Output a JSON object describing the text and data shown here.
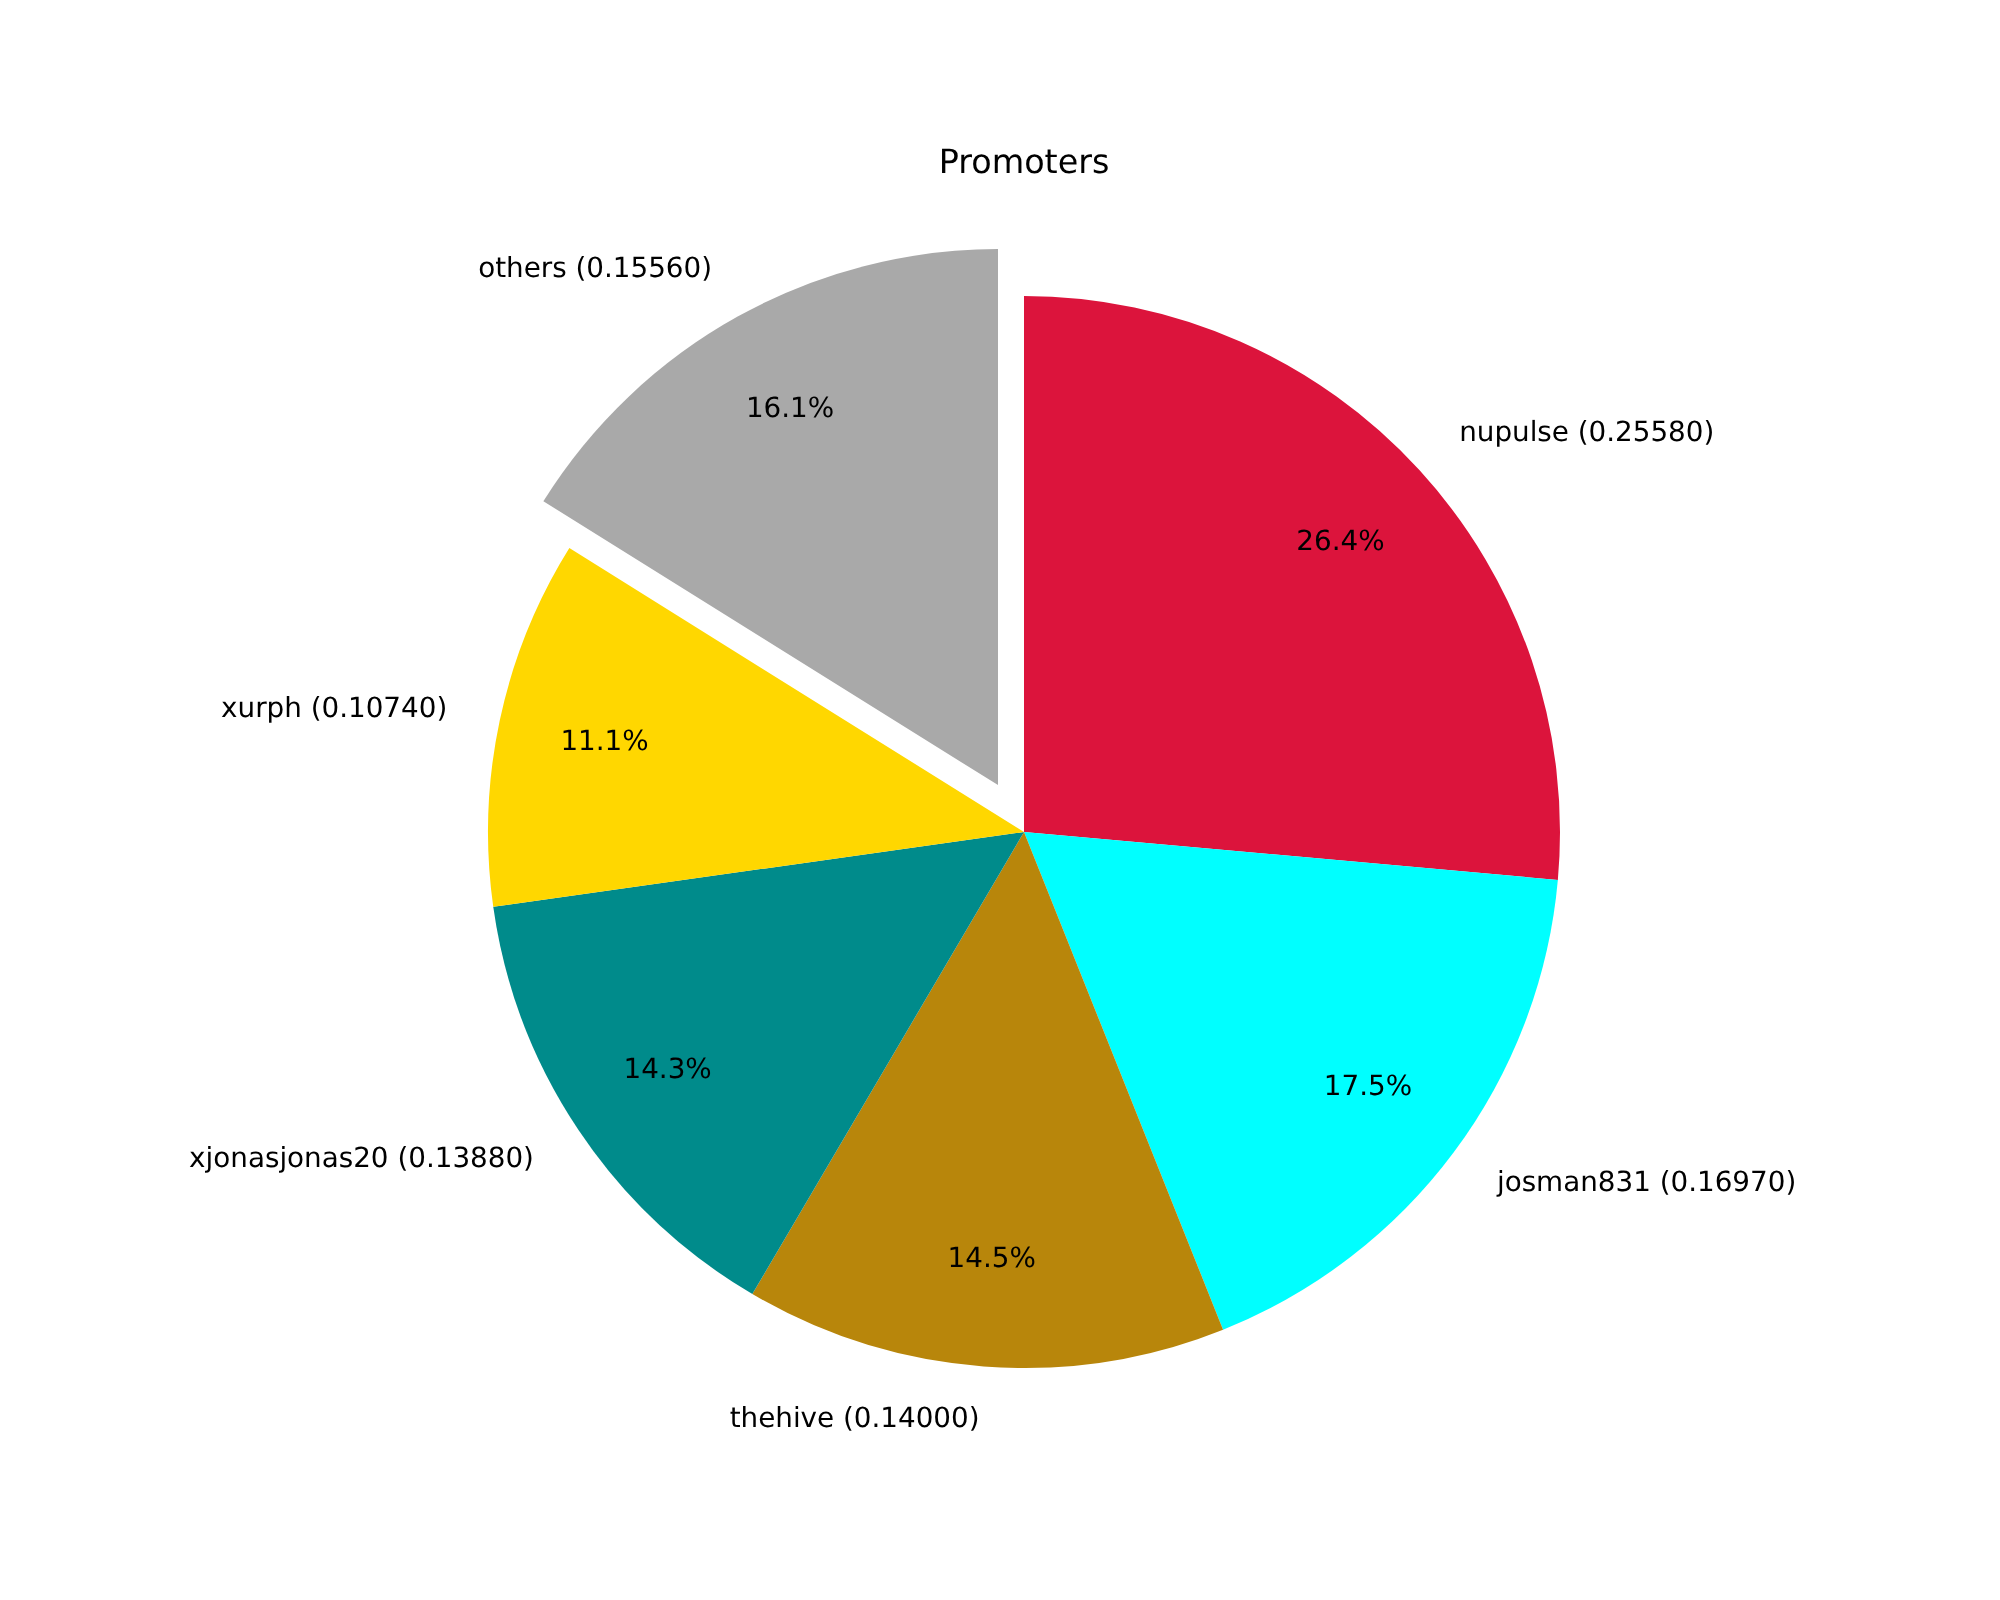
{
  "chart_data": {
    "type": "pie",
    "title": "Promoters",
    "categories": [
      "nupulse (0.25580)",
      "josman831 (0.16970)",
      "thehive (0.14000)",
      "xjonasjonas20 (0.13880)",
      "xurph (0.10740)",
      "others (0.15560)"
    ],
    "values": [
      26.4,
      17.5,
      14.5,
      14.3,
      11.1,
      16.1
    ],
    "colors": [
      "#dc143c",
      "#00ffff",
      "#b8860b",
      "#008b8b",
      "#ffd700",
      "#a9a9a9"
    ],
    "value_labels": [
      "26.4%",
      "17.5%",
      "14.5%",
      "14.3%",
      "11.1%",
      "16.1%"
    ]
  }
}
